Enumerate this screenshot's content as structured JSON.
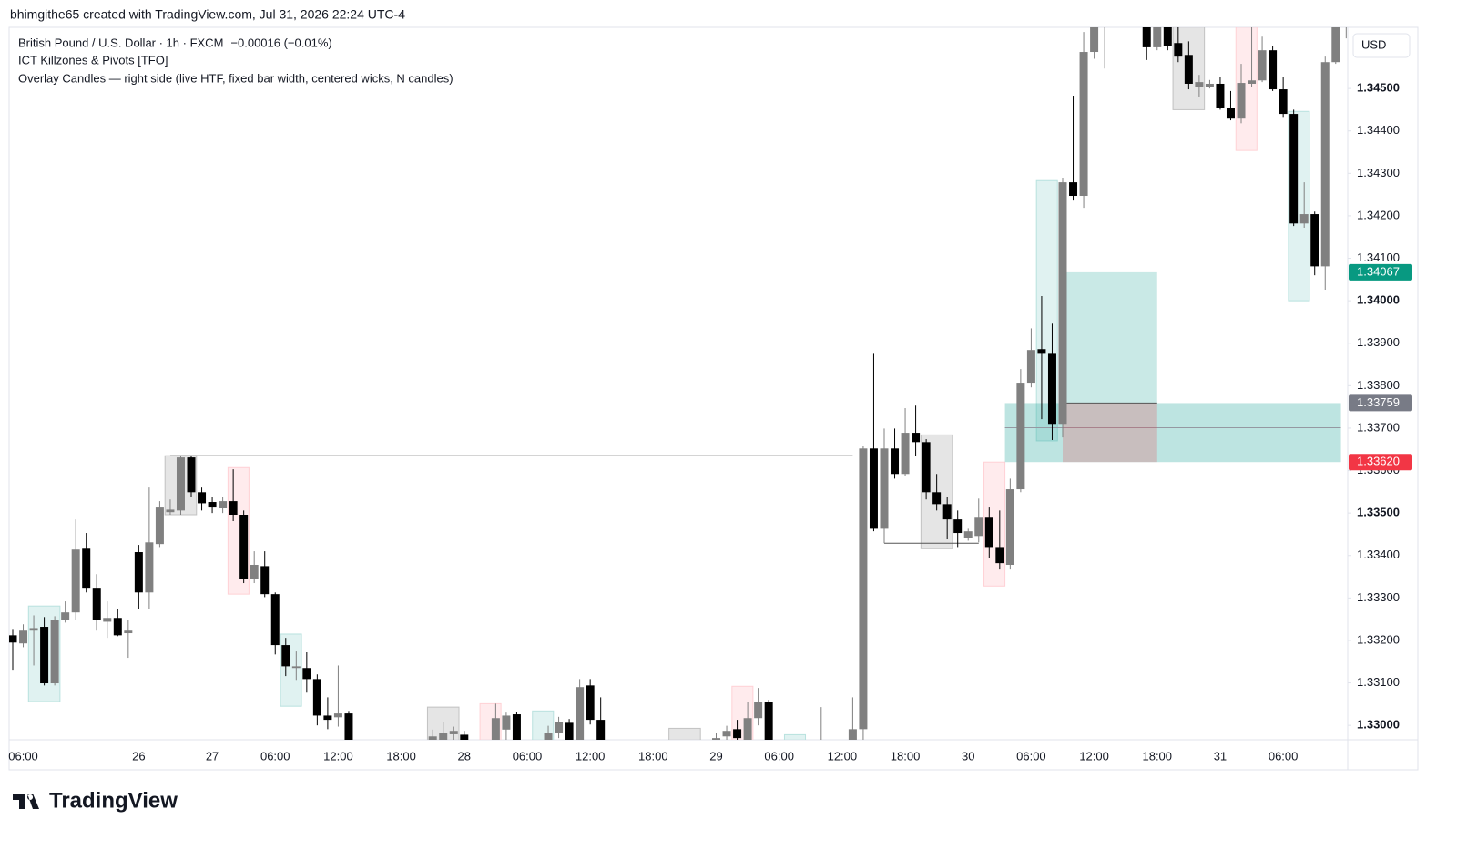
{
  "header": {
    "credit": "bhimgithe65 created with TradingView.com, Jul 31, 2026 22:24 UTC-4",
    "brand": "TradingView"
  },
  "chart_data": {
    "type": "candlestick",
    "title": "British Pound / U.S. Dollar · 1h · FXCM",
    "change": "−0.00016 (−0.01%)",
    "indicators": [
      "ICT Killzones & Pivots [TFO]",
      "Overlay Candles — right side (live HTF, fixed bar width, centered wicks, N candles)"
    ],
    "currency": "USD",
    "up_color": "#808080",
    "down_color": "#000000",
    "categories": [
      null,
      "06:00",
      null,
      null,
      null,
      null,
      null,
      null,
      null,
      null,
      null,
      null,
      "26",
      null,
      null,
      null,
      null,
      null,
      null,
      "27",
      null,
      null,
      null,
      null,
      null,
      "06:00",
      null,
      null,
      null,
      null,
      null,
      "12:00",
      null,
      null,
      null,
      null,
      null,
      "18:00",
      null,
      null,
      null,
      null,
      null,
      "28",
      null,
      null,
      null,
      null,
      null,
      "06:00",
      null,
      null,
      null,
      null,
      null,
      "12:00",
      null,
      null,
      null,
      null,
      null,
      "18:00",
      null,
      null,
      null,
      null,
      null,
      "29",
      null,
      null,
      null,
      null,
      null,
      "06:00",
      null,
      null,
      null,
      null,
      null,
      "12:00",
      null,
      null,
      null,
      null,
      null,
      "18:00",
      null,
      null,
      null,
      null,
      null,
      "30",
      null,
      null,
      null,
      null,
      null,
      "06:00",
      null,
      null,
      null,
      null,
      null,
      "12:00",
      null,
      null,
      null,
      null,
      null,
      "18:00",
      null,
      null,
      null,
      null,
      null,
      "31",
      null,
      null,
      null,
      null,
      null,
      "06:00",
      null,
      null,
      null,
      null,
      null,
      null
    ],
    "open": [
      1.33212,
      1.33193,
      1.33223,
      1.33232,
      1.33099,
      1.33249,
      1.33266,
      1.33416,
      1.33324,
      1.33244,
      1.33253,
      1.33217,
      1.33408,
      1.33313,
      1.33427,
      1.33502,
      1.33506,
      1.33631,
      1.33549,
      1.33526,
      1.33511,
      1.33528,
      1.33496,
      1.33345,
      1.33375,
      1.33309,
      1.33189,
      1.33135,
      1.33135,
      1.33109,
      1.33023,
      1.33019,
      1.33028,
      null,
      null,
      null,
      null,
      null,
      null,
      null,
      1.3295,
      1.3296,
      1.32979,
      1.32978,
      null,
      null,
      1.3296,
      1.3299,
      1.33026,
      null,
      null,
      1.3295,
      1.32981,
      1.33006,
      1.3296,
      1.33094,
      1.33013,
      null,
      null,
      null,
      null,
      null,
      null,
      null,
      null,
      null,
      null,
      1.3295,
      1.32974,
      1.32991,
      1.3296,
      1.33017,
      1.33056,
      null,
      null,
      null,
      null,
      1.3294,
      null,
      null,
      1.3295,
      1.32991,
      1.33652,
      1.33463,
      1.33652,
      1.33592,
      1.33689,
      1.33667,
      1.33549,
      1.33521,
      1.33485,
      1.33442,
      1.33446,
      1.33489,
      1.3342,
      1.33378,
      1.33556,
      1.33807,
      1.33886,
      1.33875,
      1.3371,
      1.34279,
      1.34247,
      1.34586,
      1.3468,
      null,
      null,
      null,
      1.3466,
      1.34597,
      1.3466,
      1.34607,
      1.34579,
      1.34504,
      1.34504,
      1.34511,
      1.34455,
      1.34429,
      1.34511,
      1.34519,
      1.3459,
      1.34498,
      1.3444,
      1.34182,
      1.34204,
      1.34081,
      1.34562,
      1.3466
    ],
    "high": [
      1.33227,
      1.33238,
      1.33259,
      1.33255,
      1.33257,
      1.33292,
      1.33485,
      1.33453,
      1.33356,
      1.33292,
      1.33275,
      1.33249,
      1.33425,
      1.3356,
      1.33528,
      1.33532,
      1.33635,
      1.33635,
      1.3356,
      1.33538,
      1.33538,
      1.33603,
      1.33506,
      1.3341,
      1.3341,
      1.33313,
      1.33206,
      1.33174,
      1.33172,
      1.3312,
      1.33066,
      1.33141,
      1.33034,
      null,
      null,
      null,
      null,
      null,
      null,
      null,
      1.3299,
      1.33008,
      1.32997,
      1.32987,
      null,
      null,
      1.33051,
      1.3303,
      1.33032,
      null,
      null,
      1.32999,
      1.3302,
      1.33015,
      1.33109,
      1.33109,
      1.33066,
      null,
      null,
      null,
      null,
      null,
      null,
      null,
      null,
      null,
      null,
      1.32981,
      1.32999,
      1.33013,
      1.33056,
      1.33088,
      1.3306,
      null,
      null,
      null,
      null,
      1.33043,
      null,
      null,
      1.33066,
      1.33657,
      1.33875,
      1.33699,
      1.33699,
      1.33747,
      1.33753,
      1.33674,
      1.33592,
      1.33538,
      1.33506,
      1.33463,
      1.33534,
      1.33513,
      1.33506,
      1.33581,
      1.33839,
      1.33935,
      1.34011,
      1.33946,
      1.3429,
      1.34483,
      1.34633,
      1.347,
      1.3475,
      null,
      null,
      null,
      1.3468,
      1.3468,
      1.3468,
      1.34644,
      1.34611,
      1.34532,
      1.3452,
      1.34526,
      1.34494,
      1.34558,
      1.34644,
      1.34622,
      1.34601,
      1.34526,
      1.3445,
      1.34279,
      1.3421,
      1.34575,
      1.347,
      1.347
    ],
    "low": [
      1.33131,
      1.33184,
      1.33141,
      1.33094,
      1.33094,
      1.33242,
      1.33249,
      1.33313,
      1.33223,
      1.33206,
      1.3321,
      1.33159,
      1.33275,
      1.33275,
      1.3342,
      1.33496,
      1.33496,
      1.33538,
      1.33506,
      1.335,
      1.335,
      1.33481,
      1.33335,
      1.33335,
      1.33302,
      1.33167,
      1.33116,
      1.33107,
      1.33077,
      1.33,
      1.32991,
      1.32997,
      1.3293,
      null,
      null,
      null,
      null,
      null,
      null,
      null,
      1.3292,
      1.3294,
      1.3296,
      1.3293,
      null,
      null,
      1.3294,
      1.3295,
      1.3294,
      null,
      null,
      1.3293,
      1.3297,
      1.3294,
      1.3294,
      1.33002,
      1.3294,
      null,
      null,
      null,
      null,
      null,
      null,
      null,
      null,
      null,
      null,
      1.3293,
      1.3296,
      1.3296,
      1.3294,
      1.33,
      1.3293,
      null,
      null,
      null,
      null,
      1.3292,
      null,
      null,
      1.3293,
      1.32966,
      1.33457,
      1.33429,
      1.33581,
      1.33588,
      1.33635,
      1.33532,
      1.33506,
      1.33438,
      1.3342,
      1.33435,
      1.33431,
      1.33393,
      1.33367,
      1.33367,
      1.33549,
      1.33796,
      1.33721,
      1.33672,
      1.33678,
      1.34236,
      1.34219,
      1.3457,
      1.34547,
      null,
      null,
      null,
      1.34567,
      1.3459,
      1.3459,
      1.34562,
      1.34498,
      1.34481,
      1.345,
      1.3445,
      1.34425,
      1.34418,
      1.34504,
      1.34515,
      1.34494,
      1.34433,
      1.34176,
      1.34172,
      1.3406,
      1.34026,
      1.34558,
      1.34618
    ],
    "close": [
      1.33195,
      1.33223,
      1.33229,
      1.33099,
      1.33249,
      1.33266,
      1.33414,
      1.33324,
      1.33249,
      1.33253,
      1.33212,
      1.33223,
      1.33313,
      1.33431,
      1.33513,
      1.33508,
      1.33631,
      1.33549,
      1.33523,
      1.33513,
      1.33528,
      1.33496,
      1.33345,
      1.33378,
      1.33309,
      1.33189,
      1.33139,
      1.33139,
      1.33109,
      1.33023,
      1.33013,
      1.33028,
      1.3295,
      null,
      null,
      null,
      null,
      null,
      null,
      null,
      1.32974,
      1.32981,
      1.32987,
      1.3295,
      null,
      null,
      1.33017,
      1.33023,
      1.3296,
      null,
      null,
      1.32981,
      1.33008,
      1.3296,
      1.3309,
      1.33013,
      1.3296,
      null,
      null,
      null,
      null,
      null,
      null,
      null,
      null,
      null,
      null,
      1.3297,
      1.32987,
      1.3297,
      1.33017,
      1.33056,
      1.3295,
      null,
      null,
      null,
      null,
      1.3296,
      null,
      null,
      1.32991,
      1.33652,
      1.33463,
      1.33652,
      1.33592,
      1.33689,
      1.33667,
      1.33549,
      1.33521,
      1.33485,
      1.33453,
      1.33457,
      1.33489,
      1.3342,
      1.33382,
      1.33556,
      1.33807,
      1.33884,
      1.33875,
      1.3371,
      1.34279,
      1.34247,
      1.34586,
      1.3468,
      1.3472,
      null,
      null,
      null,
      1.34597,
      1.3466,
      1.34601,
      1.34575,
      1.34511,
      1.34515,
      1.34511,
      1.34455,
      1.34429,
      1.34513,
      1.34519,
      1.3459,
      1.34498,
      1.3444,
      1.34182,
      1.34204,
      1.34081,
      1.34562,
      1.3466,
      1.3468
    ],
    "ylim": [
      1.32966,
      1.34644
    ],
    "yticks": [
      {
        "value": 1.33,
        "label": "1.33000"
      },
      {
        "value": 1.331,
        "label": "1.33100"
      },
      {
        "value": 1.332,
        "label": "1.33200"
      },
      {
        "value": 1.333,
        "label": "1.33300"
      },
      {
        "value": 1.334,
        "label": "1.33400"
      },
      {
        "value": 1.335,
        "label": "1.33500"
      },
      {
        "value": 1.336,
        "label": "1.33600"
      },
      {
        "value": 1.337,
        "label": "1.33700"
      },
      {
        "value": 1.338,
        "label": "1.33800"
      },
      {
        "value": 1.339,
        "label": "1.33900"
      },
      {
        "value": 1.34,
        "label": "1.34000"
      },
      {
        "value": 1.341,
        "label": "1.34100"
      },
      {
        "value": 1.342,
        "label": "1.34200"
      },
      {
        "value": 1.343,
        "label": "1.34300"
      },
      {
        "value": 1.344,
        "label": "1.34400"
      },
      {
        "value": 1.345,
        "label": "1.34500"
      }
    ],
    "zones": [
      {
        "start": 2,
        "end": 4,
        "top": 1.33281,
        "bottom": 1.33056,
        "color": "#b2dfdb"
      },
      {
        "start": 15,
        "end": 17,
        "top": 1.33635,
        "bottom": 1.33496,
        "color": "#bdbdbd"
      },
      {
        "start": 21,
        "end": 22,
        "top": 1.33607,
        "bottom": 1.33309,
        "color": "#ffcdd2"
      },
      {
        "start": 26,
        "end": 27,
        "top": 1.33215,
        "bottom": 1.33045,
        "color": "#b2dfdb"
      },
      {
        "start": 40,
        "end": 42,
        "top": 1.33043,
        "bottom": 1.329,
        "color": "#bdbdbd"
      },
      {
        "start": 45,
        "end": 46,
        "top": 1.33051,
        "bottom": 1.329,
        "color": "#ffcdd2"
      },
      {
        "start": 50,
        "end": 51,
        "top": 1.33034,
        "bottom": 1.329,
        "color": "#b2dfdb"
      },
      {
        "start": 63,
        "end": 65,
        "top": 1.32993,
        "bottom": 1.329,
        "color": "#bdbdbd"
      },
      {
        "start": 69,
        "end": 70,
        "top": 1.33092,
        "bottom": 1.329,
        "color": "#ffcdd2"
      },
      {
        "start": 74,
        "end": 75,
        "top": 1.32978,
        "bottom": 1.329,
        "color": "#b2dfdb"
      },
      {
        "start": 87,
        "end": 89,
        "top": 1.33684,
        "bottom": 1.33416,
        "color": "#bdbdbd"
      },
      {
        "start": 93,
        "end": 94,
        "top": 1.3362,
        "bottom": 1.33328,
        "color": "#ffcdd2"
      },
      {
        "start": 98,
        "end": 99,
        "top": 1.34283,
        "bottom": 1.3367,
        "color": "#b2dfdb"
      },
      {
        "start": 111,
        "end": 113,
        "top": 1.347,
        "bottom": 1.3445,
        "color": "#bdbdbd"
      },
      {
        "start": 117,
        "end": 118,
        "top": 1.347,
        "bottom": 1.34354,
        "color": "#ffcdd2"
      },
      {
        "start": 122,
        "end": 123,
        "top": 1.34446,
        "bottom": 1.34,
        "color": "#b2dfdb"
      }
    ],
    "lines": [
      {
        "start": 15,
        "end": 80,
        "value": 1.33635
      },
      {
        "start": 83,
        "end": 92,
        "value": 1.33429
      }
    ],
    "band": {
      "start": 95,
      "end": 126,
      "top": 1.33759,
      "bottom": 1.3362,
      "mid": 1.33701,
      "color": "#26a69a"
    },
    "position": {
      "start": 100,
      "end": 109,
      "entry": 1.33759,
      "target": 1.34067,
      "stop": 1.3362,
      "target_color": "#26a69a",
      "stop_color": "#f23645"
    },
    "price_markers": [
      {
        "value": 1.34067,
        "color": "#089981"
      },
      {
        "value": 1.33759,
        "color": "#787b86"
      },
      {
        "value": 1.3362,
        "label": "1.33620",
        "color": "#f23645"
      }
    ]
  }
}
